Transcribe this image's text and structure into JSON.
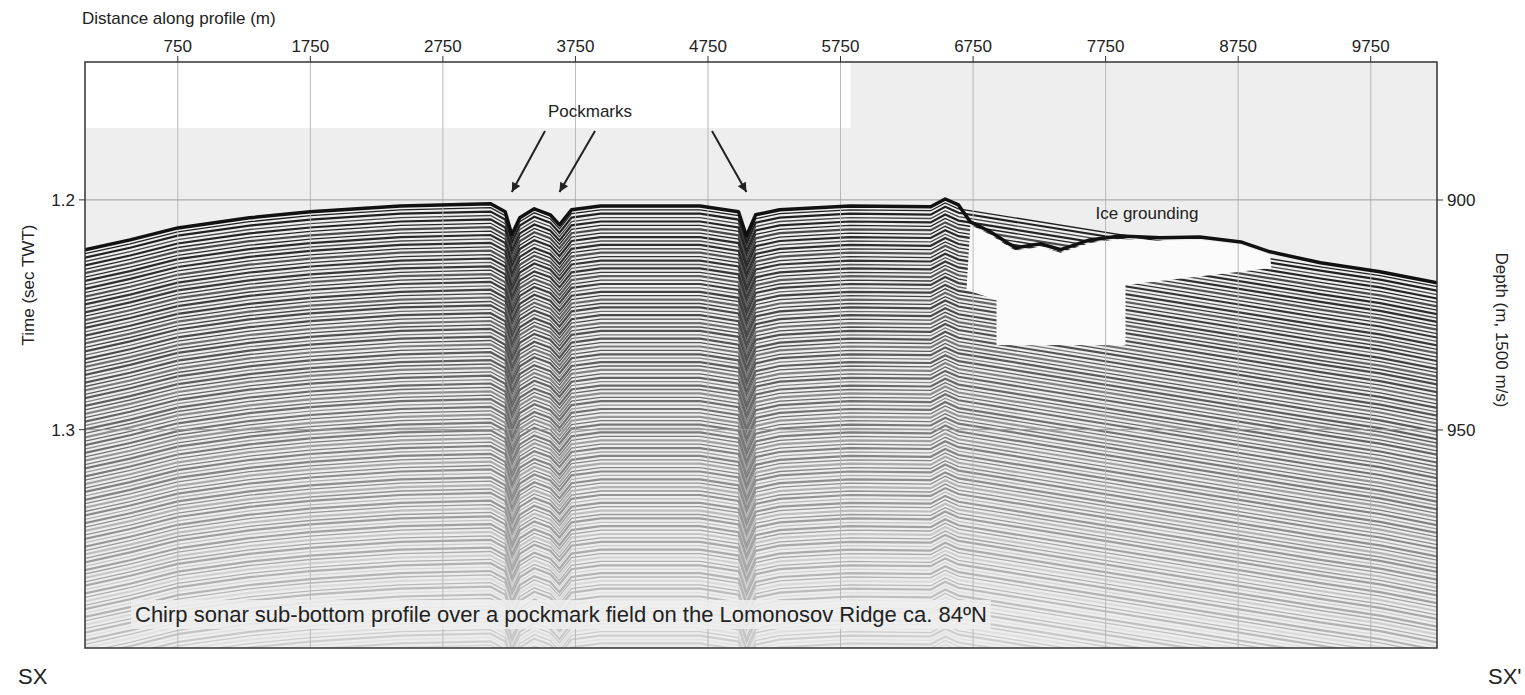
{
  "chart_data": {
    "type": "line",
    "title": "Chirp sonar sub-bottom profile over a pockmark field on the Lomonosov Ridge ca. 84ºN",
    "x_label": "Distance along profile (m)",
    "y_label": "Time (sec TWT)",
    "y2_label": "Depth (m, 1500 m/s)",
    "xlim": [
      50,
      10250
    ],
    "xticks": [
      750,
      1750,
      2750,
      3750,
      4750,
      5750,
      6750,
      7750,
      8750,
      9750
    ],
    "ylim": [
      1.14,
      1.395
    ],
    "yticks": [
      1.2,
      1.3
    ],
    "y2lim": [
      870,
      997.4
    ],
    "y2ticks": [
      900,
      950
    ],
    "grid": true,
    "series": [
      {
        "color": "#111111",
        "x": [
          50,
          390,
          750,
          1290,
          1750,
          2430,
          3110,
          3220,
          3270,
          3330,
          3440,
          3560,
          3630,
          3720,
          3940,
          4690,
          4980,
          5040,
          5110,
          5290,
          5820,
          6430,
          6540,
          6640,
          6730,
          6880,
          7070,
          7260,
          7410,
          7630,
          7860,
          8160,
          8460,
          8770,
          8990,
          9370,
          9820,
          10250
        ],
        "values": [
          1.2217,
          1.2174,
          1.2122,
          1.2078,
          1.2052,
          1.2026,
          1.2017,
          1.2052,
          1.2152,
          1.2078,
          1.2039,
          1.2065,
          1.2109,
          1.2043,
          1.2026,
          1.2026,
          1.2052,
          1.2157,
          1.2065,
          1.2043,
          1.2026,
          1.203,
          1.1996,
          1.2022,
          1.2096,
          1.2139,
          1.2209,
          1.2191,
          1.2217,
          1.2174,
          1.2157,
          1.2165,
          1.2161,
          1.2183,
          1.2226,
          1.2274,
          1.2313,
          1.2361
        ]
      }
    ],
    "annotations": [
      {
        "text": "Pockmarks",
        "x": [
          3270,
          3630,
          5040
        ]
      },
      {
        "text": "Ice grounding"
      }
    ],
    "profile_ends": [
      "SX",
      "SX'"
    ]
  }
}
